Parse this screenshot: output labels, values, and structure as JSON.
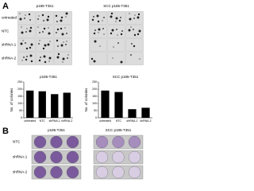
{
  "panel_a": {
    "label": "A",
    "grids": [
      {
        "title": "p185-T351"
      },
      {
        "title": "SCC p185-T351"
      }
    ],
    "rows": [
      "untreated",
      "NTC",
      "shRNA-1",
      "shRNA-2"
    ]
  },
  "charts": [
    {
      "type": "bar",
      "title": "p185-T351",
      "y_label": "No. of colonies",
      "categories": [
        "untreated",
        "NTC",
        "shRNA-1",
        "shRNA-2"
      ],
      "values": [
        190,
        185,
        165,
        175
      ],
      "color": "#000000",
      "ylim": [
        0,
        250
      ],
      "yticks": [
        0,
        50,
        100,
        150,
        200,
        250
      ]
    },
    {
      "type": "bar",
      "title": "SCC p185-T351",
      "y_label": "No. of colonies",
      "categories": [
        "untreated",
        "NTC",
        "shRNA-1",
        "shRNA-2"
      ],
      "values": [
        190,
        180,
        60,
        70
      ],
      "color": "#000000",
      "ylim": [
        0,
        250
      ],
      "yticks": [
        0,
        50,
        100,
        150,
        200,
        250
      ]
    }
  ],
  "panel_b": {
    "label": "B",
    "columns": [
      "p185-T351",
      "SCC p185-T351"
    ],
    "rows": [
      "NTC",
      "shRNA-1",
      "shRNA-2"
    ]
  }
}
